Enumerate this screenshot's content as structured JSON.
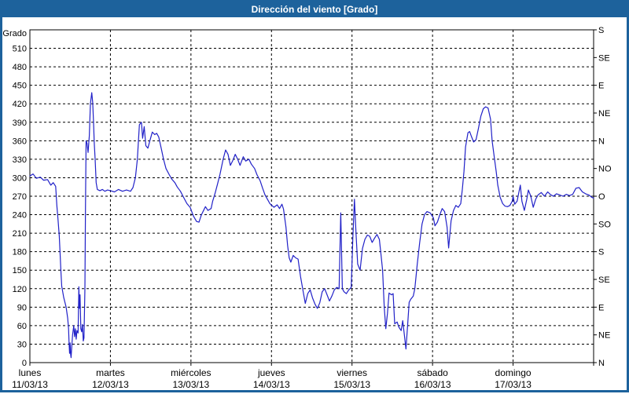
{
  "window": {
    "title": "Dirección del viento [Grado]"
  },
  "colors": {
    "titlebar": "#1d629c",
    "frame": "#1d629c",
    "title_text": "#ffffff",
    "plot_background": "#ffffff",
    "grid": "#000000",
    "axis": "#000000",
    "line": "#2121c8",
    "tick_text": "#000000"
  },
  "chart_data": {
    "type": "line",
    "title": "Dirección del viento [Grado]",
    "xlabel": "",
    "ylabel": "Grado",
    "ylim": [
      0,
      540
    ],
    "xlim_days": [
      0,
      7
    ],
    "grid": "dashed",
    "legend": "none",
    "y_axis_left": {
      "label": "Grado",
      "min": 0,
      "max": 540,
      "step": 30,
      "tick_labels": [
        "0",
        "30",
        "60",
        "90",
        "120",
        "150",
        "180",
        "210",
        "240",
        "270",
        "300",
        "330",
        "360",
        "390",
        "420",
        "450",
        "480",
        "510"
      ]
    },
    "y_axis_right": {
      "ticks": [
        {
          "value": 540,
          "label": "S"
        },
        {
          "value": 495,
          "label": "SE"
        },
        {
          "value": 450,
          "label": "E"
        },
        {
          "value": 405,
          "label": "NE"
        },
        {
          "value": 360,
          "label": "N"
        },
        {
          "value": 315,
          "label": "NO"
        },
        {
          "value": 270,
          "label": "O"
        },
        {
          "value": 225,
          "label": "SO"
        },
        {
          "value": 180,
          "label": "S"
        },
        {
          "value": 135,
          "label": "SE"
        },
        {
          "value": 90,
          "label": "E"
        },
        {
          "value": 45,
          "label": "NE"
        },
        {
          "value": 0,
          "label": "N"
        }
      ]
    },
    "x_axis": {
      "days": [
        {
          "name": "lunes",
          "date": "11/03/13"
        },
        {
          "name": "martes",
          "date": "12/03/13"
        },
        {
          "name": "miércoles",
          "date": "13/03/13"
        },
        {
          "name": "jueves",
          "date": "14/03/13"
        },
        {
          "name": "viernes",
          "date": "15/03/13"
        },
        {
          "name": "sábado",
          "date": "16/03/13"
        },
        {
          "name": "domingo",
          "date": "17/03/13"
        }
      ]
    },
    "series": [
      {
        "name": "Dirección del viento",
        "unit": "Grado",
        "points": [
          [
            0.0,
            303
          ],
          [
            0.04,
            306
          ],
          [
            0.08,
            299
          ],
          [
            0.13,
            301
          ],
          [
            0.17,
            296
          ],
          [
            0.22,
            297
          ],
          [
            0.26,
            288
          ],
          [
            0.29,
            292
          ],
          [
            0.32,
            286
          ],
          [
            0.335,
            255
          ],
          [
            0.35,
            232
          ],
          [
            0.365,
            205
          ],
          [
            0.375,
            178
          ],
          [
            0.385,
            150
          ],
          [
            0.395,
            124
          ],
          [
            0.42,
            106
          ],
          [
            0.45,
            90
          ],
          [
            0.47,
            72
          ],
          [
            0.48,
            55
          ],
          [
            0.487,
            30
          ],
          [
            0.493,
            15
          ],
          [
            0.5,
            32
          ],
          [
            0.506,
            14
          ],
          [
            0.512,
            8
          ],
          [
            0.52,
            26
          ],
          [
            0.53,
            45
          ],
          [
            0.545,
            60
          ],
          [
            0.555,
            42
          ],
          [
            0.565,
            55
          ],
          [
            0.575,
            38
          ],
          [
            0.585,
            52
          ],
          [
            0.598,
            48
          ],
          [
            0.608,
            123
          ],
          [
            0.615,
            88
          ],
          [
            0.623,
            110
          ],
          [
            0.633,
            55
          ],
          [
            0.643,
            50
          ],
          [
            0.653,
            62
          ],
          [
            0.663,
            35
          ],
          [
            0.672,
            40
          ],
          [
            0.683,
            120
          ],
          [
            0.69,
            250
          ],
          [
            0.698,
            360
          ],
          [
            0.71,
            356
          ],
          [
            0.722,
            341
          ],
          [
            0.738,
            368
          ],
          [
            0.752,
            420
          ],
          [
            0.768,
            438
          ],
          [
            0.78,
            422
          ],
          [
            0.79,
            392
          ],
          [
            0.8,
            356
          ],
          [
            0.81,
            330
          ],
          [
            0.823,
            292
          ],
          [
            0.838,
            281
          ],
          [
            0.87,
            279
          ],
          [
            0.9,
            281
          ],
          [
            0.93,
            278
          ],
          [
            0.965,
            280
          ],
          [
            1.0,
            279
          ],
          [
            1.05,
            277
          ],
          [
            1.1,
            281
          ],
          [
            1.15,
            278
          ],
          [
            1.2,
            280
          ],
          [
            1.25,
            278
          ],
          [
            1.28,
            284
          ],
          [
            1.31,
            300
          ],
          [
            1.335,
            330
          ],
          [
            1.36,
            386
          ],
          [
            1.385,
            390
          ],
          [
            1.4,
            364
          ],
          [
            1.42,
            383
          ],
          [
            1.44,
            352
          ],
          [
            1.465,
            348
          ],
          [
            1.49,
            360
          ],
          [
            1.52,
            374
          ],
          [
            1.55,
            370
          ],
          [
            1.575,
            372
          ],
          [
            1.6,
            366
          ],
          [
            1.63,
            348
          ],
          [
            1.66,
            330
          ],
          [
            1.69,
            315
          ],
          [
            1.73,
            305
          ],
          [
            1.76,
            298
          ],
          [
            1.8,
            292
          ],
          [
            1.83,
            285
          ],
          [
            1.87,
            278
          ],
          [
            1.91,
            268
          ],
          [
            1.95,
            258
          ],
          [
            1.99,
            252
          ],
          [
            2.03,
            238
          ],
          [
            2.07,
            229
          ],
          [
            2.1,
            228
          ],
          [
            2.13,
            240
          ],
          [
            2.18,
            253
          ],
          [
            2.21,
            247
          ],
          [
            2.25,
            250
          ],
          [
            2.27,
            262
          ],
          [
            2.3,
            275
          ],
          [
            2.33,
            290
          ],
          [
            2.36,
            305
          ],
          [
            2.4,
            330
          ],
          [
            2.43,
            345
          ],
          [
            2.46,
            338
          ],
          [
            2.49,
            320
          ],
          [
            2.52,
            328
          ],
          [
            2.55,
            338
          ],
          [
            2.58,
            330
          ],
          [
            2.61,
            320
          ],
          [
            2.65,
            334
          ],
          [
            2.68,
            327
          ],
          [
            2.72,
            330
          ],
          [
            2.75,
            322
          ],
          [
            2.79,
            315
          ],
          [
            2.82,
            305
          ],
          [
            2.86,
            295
          ],
          [
            2.89,
            283
          ],
          [
            2.92,
            272
          ],
          [
            2.95,
            265
          ],
          [
            2.98,
            258
          ],
          [
            3.03,
            252
          ],
          [
            3.07,
            256
          ],
          [
            3.1,
            250
          ],
          [
            3.13,
            257
          ],
          [
            3.15,
            249
          ],
          [
            3.18,
            220
          ],
          [
            3.2,
            190
          ],
          [
            3.22,
            170
          ],
          [
            3.24,
            163
          ],
          [
            3.27,
            174
          ],
          [
            3.3,
            170
          ],
          [
            3.33,
            168
          ],
          [
            3.36,
            140
          ],
          [
            3.39,
            118
          ],
          [
            3.42,
            96
          ],
          [
            3.45,
            112
          ],
          [
            3.48,
            118
          ],
          [
            3.51,
            105
          ],
          [
            3.54,
            95
          ],
          [
            3.57,
            88
          ],
          [
            3.6,
            97
          ],
          [
            3.63,
            115
          ],
          [
            3.66,
            120
          ],
          [
            3.69,
            110
          ],
          [
            3.72,
            100
          ],
          [
            3.75,
            108
          ],
          [
            3.78,
            118
          ],
          [
            3.81,
            122
          ],
          [
            3.84,
            120
          ],
          [
            3.86,
            243
          ],
          [
            3.88,
            120
          ],
          [
            3.9,
            115
          ],
          [
            3.93,
            112
          ],
          [
            3.96,
            118
          ],
          [
            3.99,
            122
          ],
          [
            4.01,
            200
          ],
          [
            4.03,
            265
          ],
          [
            4.05,
            210
          ],
          [
            4.07,
            160
          ],
          [
            4.1,
            150
          ],
          [
            4.13,
            185
          ],
          [
            4.16,
            200
          ],
          [
            4.19,
            207
          ],
          [
            4.22,
            205
          ],
          [
            4.25,
            195
          ],
          [
            4.28,
            202
          ],
          [
            4.31,
            208
          ],
          [
            4.34,
            200
          ],
          [
            4.36,
            175
          ],
          [
            4.38,
            150
          ],
          [
            4.4,
            90
          ],
          [
            4.42,
            55
          ],
          [
            4.44,
            80
          ],
          [
            4.46,
            113
          ],
          [
            4.49,
            110
          ],
          [
            4.51,
            112
          ],
          [
            4.53,
            63
          ],
          [
            4.56,
            66
          ],
          [
            4.58,
            58
          ],
          [
            4.61,
            52
          ],
          [
            4.63,
            68
          ],
          [
            4.65,
            45
          ],
          [
            4.67,
            22
          ],
          [
            4.69,
            60
          ],
          [
            4.71,
            98
          ],
          [
            4.73,
            103
          ],
          [
            4.76,
            108
          ],
          [
            4.78,
            120
          ],
          [
            4.81,
            160
          ],
          [
            4.84,
            195
          ],
          [
            4.87,
            225
          ],
          [
            4.9,
            240
          ],
          [
            4.93,
            245
          ],
          [
            4.97,
            243
          ],
          [
            5.01,
            235
          ],
          [
            5.03,
            222
          ],
          [
            5.06,
            228
          ],
          [
            5.09,
            240
          ],
          [
            5.12,
            250
          ],
          [
            5.15,
            245
          ],
          [
            5.18,
            220
          ],
          [
            5.2,
            186
          ],
          [
            5.23,
            230
          ],
          [
            5.26,
            247
          ],
          [
            5.29,
            255
          ],
          [
            5.32,
            252
          ],
          [
            5.35,
            258
          ],
          [
            5.37,
            281
          ],
          [
            5.39,
            310
          ],
          [
            5.41,
            350
          ],
          [
            5.44,
            373
          ],
          [
            5.46,
            375
          ],
          [
            5.48,
            368
          ],
          [
            5.51,
            358
          ],
          [
            5.54,
            362
          ],
          [
            5.57,
            380
          ],
          [
            5.6,
            400
          ],
          [
            5.63,
            412
          ],
          [
            5.66,
            415
          ],
          [
            5.69,
            413
          ],
          [
            5.72,
            395
          ],
          [
            5.74,
            360
          ],
          [
            5.77,
            330
          ],
          [
            5.79,
            310
          ],
          [
            5.81,
            288
          ],
          [
            5.84,
            268
          ],
          [
            5.87,
            258
          ],
          [
            5.9,
            254
          ],
          [
            5.93,
            253
          ],
          [
            5.96,
            255
          ],
          [
            5.99,
            262
          ],
          [
            6.0,
            270
          ],
          [
            6.02,
            257
          ],
          [
            6.05,
            262
          ],
          [
            6.07,
            275
          ],
          [
            6.09,
            288
          ],
          [
            6.11,
            262
          ],
          [
            6.14,
            247
          ],
          [
            6.17,
            265
          ],
          [
            6.19,
            280
          ],
          [
            6.22,
            270
          ],
          [
            6.25,
            252
          ],
          [
            6.28,
            265
          ],
          [
            6.31,
            272
          ],
          [
            6.35,
            276
          ],
          [
            6.39,
            270
          ],
          [
            6.43,
            277
          ],
          [
            6.46,
            273
          ],
          [
            6.5,
            270
          ],
          [
            6.54,
            274
          ],
          [
            6.58,
            272
          ],
          [
            6.62,
            270
          ],
          [
            6.66,
            273
          ],
          [
            6.7,
            271
          ],
          [
            6.74,
            273
          ],
          [
            6.78,
            283
          ],
          [
            6.82,
            284
          ],
          [
            6.86,
            277
          ],
          [
            6.9,
            274
          ],
          [
            6.94,
            272
          ],
          [
            6.98,
            268
          ],
          [
            7.0,
            267
          ]
        ]
      }
    ]
  }
}
